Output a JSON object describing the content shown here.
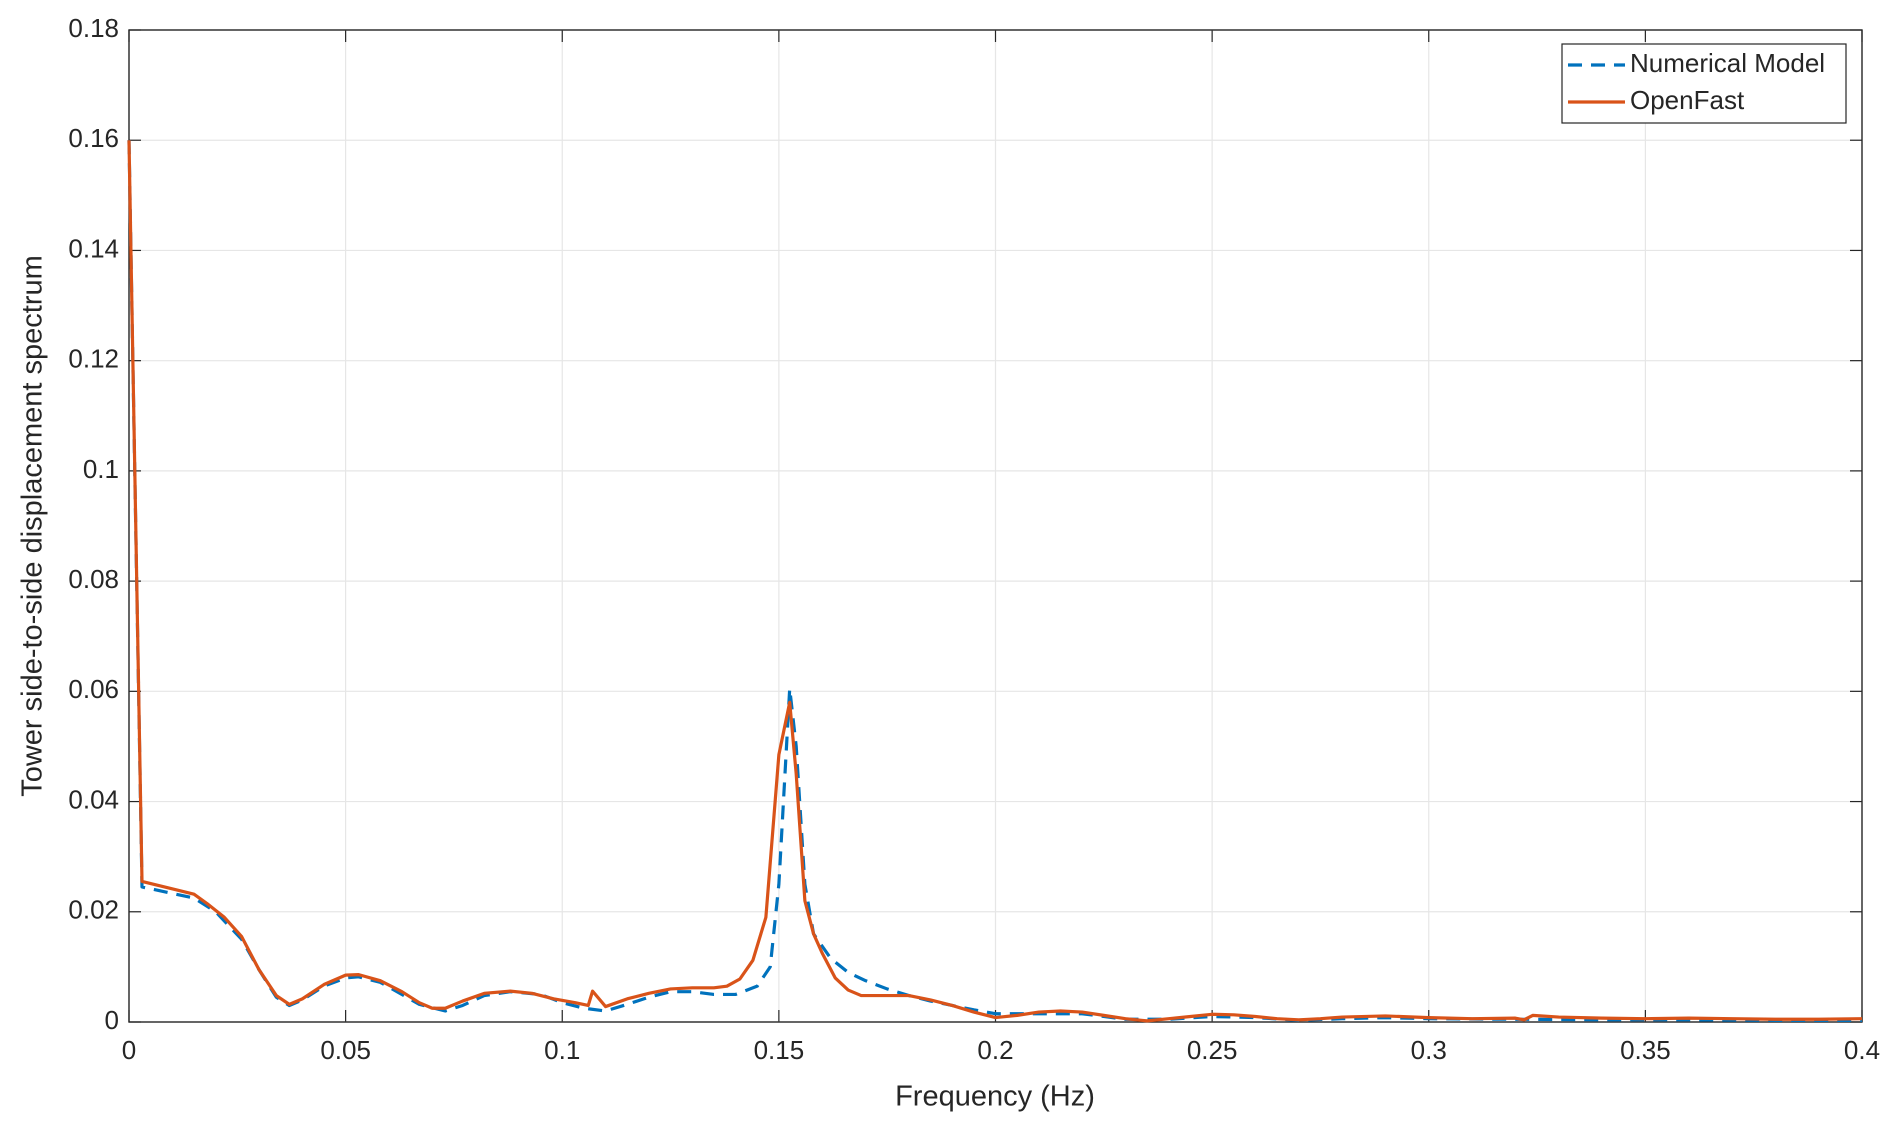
{
  "chart_data": {
    "type": "line",
    "x_label": "Frequency (Hz)",
    "y_label": "Tower side-to-side displacement spectrum",
    "xlim": [
      0,
      0.4
    ],
    "xticks": [
      0,
      0.05,
      0.1,
      0.15,
      0.2,
      0.25,
      0.3,
      0.35,
      0.4
    ],
    "ylim": [
      0,
      0.18
    ],
    "yticks": [
      0,
      0.02,
      0.04,
      0.06,
      0.08,
      0.1,
      0.12,
      0.14,
      0.16,
      0.18
    ],
    "grid": true,
    "legend": "northeast",
    "series": [
      {
        "name": "Numerical Model",
        "color": "#0072BD",
        "dash": true,
        "x": [
          0,
          0.003,
          0.015,
          0.02,
          0.026,
          0.03,
          0.034,
          0.037,
          0.04,
          0.045,
          0.05,
          0.053,
          0.058,
          0.063,
          0.067,
          0.073,
          0.077,
          0.082,
          0.088,
          0.095,
          0.1,
          0.105,
          0.11,
          0.115,
          0.12,
          0.125,
          0.13,
          0.135,
          0.14,
          0.145,
          0.148,
          0.15,
          0.1525,
          0.154,
          0.156,
          0.158,
          0.162,
          0.166,
          0.17,
          0.175,
          0.18,
          0.185,
          0.19,
          0.195,
          0.2,
          0.21,
          0.22,
          0.23,
          0.24,
          0.25,
          0.26,
          0.27,
          0.28,
          0.29,
          0.3,
          0.32,
          0.34,
          0.36,
          0.38,
          0.4
        ],
        "values": [
          0.16,
          0.0245,
          0.0225,
          0.02,
          0.015,
          0.0095,
          0.0045,
          0.003,
          0.004,
          0.0065,
          0.008,
          0.0082,
          0.0072,
          0.005,
          0.0032,
          0.002,
          0.003,
          0.0048,
          0.0055,
          0.005,
          0.0035,
          0.0025,
          0.002,
          0.0032,
          0.0045,
          0.0055,
          0.0055,
          0.005,
          0.005,
          0.0065,
          0.01,
          0.025,
          0.0605,
          0.05,
          0.025,
          0.016,
          0.0115,
          0.009,
          0.0075,
          0.006,
          0.0048,
          0.0038,
          0.003,
          0.0022,
          0.0015,
          0.0015,
          0.0015,
          0.0005,
          0.0005,
          0.001,
          0.0008,
          0.0003,
          0.0006,
          0.0008,
          0.0006,
          0.0005,
          0.0004,
          0.0004,
          0.0003,
          0.0003
        ]
      },
      {
        "name": "OpenFast",
        "color": "#D95319",
        "dash": false,
        "x": [
          0,
          0.003,
          0.015,
          0.018,
          0.022,
          0.026,
          0.03,
          0.034,
          0.037,
          0.04,
          0.045,
          0.05,
          0.053,
          0.058,
          0.063,
          0.067,
          0.07,
          0.073,
          0.077,
          0.082,
          0.088,
          0.093,
          0.098,
          0.103,
          0.106,
          0.107,
          0.11,
          0.115,
          0.12,
          0.125,
          0.13,
          0.135,
          0.138,
          0.141,
          0.144,
          0.147,
          0.15,
          0.1525,
          0.154,
          0.156,
          0.158,
          0.16,
          0.163,
          0.166,
          0.169,
          0.175,
          0.18,
          0.185,
          0.19,
          0.195,
          0.2,
          0.205,
          0.21,
          0.215,
          0.22,
          0.225,
          0.23,
          0.235,
          0.24,
          0.245,
          0.25,
          0.255,
          0.26,
          0.265,
          0.27,
          0.275,
          0.28,
          0.29,
          0.3,
          0.31,
          0.32,
          0.322,
          0.324,
          0.33,
          0.34,
          0.35,
          0.36,
          0.37,
          0.38,
          0.39,
          0.4
        ],
        "values": [
          0.16,
          0.0255,
          0.0232,
          0.0215,
          0.019,
          0.0155,
          0.0095,
          0.0048,
          0.0032,
          0.0042,
          0.0068,
          0.0085,
          0.0086,
          0.0075,
          0.0055,
          0.0035,
          0.0025,
          0.0025,
          0.0038,
          0.0052,
          0.0056,
          0.0052,
          0.0042,
          0.0035,
          0.003,
          0.0056,
          0.0028,
          0.0042,
          0.0052,
          0.006,
          0.0062,
          0.0062,
          0.0065,
          0.0078,
          0.0112,
          0.019,
          0.0485,
          0.058,
          0.045,
          0.022,
          0.016,
          0.0125,
          0.008,
          0.0058,
          0.0048,
          0.0048,
          0.0048,
          0.004,
          0.003,
          0.0018,
          0.0008,
          0.0012,
          0.0018,
          0.002,
          0.0018,
          0.0012,
          0.0006,
          0.0002,
          0.0006,
          0.001,
          0.0014,
          0.0013,
          0.001,
          0.0006,
          0.0004,
          0.0006,
          0.0009,
          0.0011,
          0.0008,
          0.0006,
          0.0007,
          0.0004,
          0.0012,
          0.0009,
          0.0007,
          0.0006,
          0.0007,
          0.0006,
          0.0005,
          0.0005,
          0.0006
        ]
      }
    ]
  }
}
